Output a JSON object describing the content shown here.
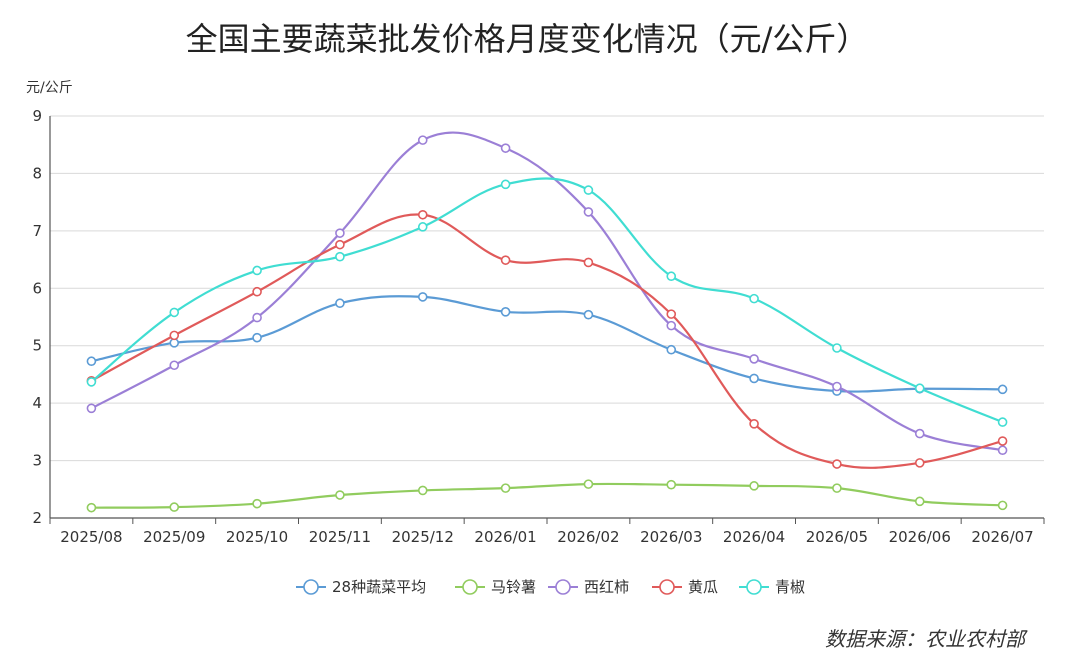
{
  "chart_data": {
    "type": "line",
    "title": "全国主要蔬菜批发价格月度变化情况（元/公斤）",
    "ylabel": "元/公斤",
    "xlabel": "",
    "ylim": [
      2,
      9
    ],
    "yticks": [
      "2",
      "3",
      "4",
      "5",
      "6",
      "7",
      "8",
      "9"
    ],
    "grid": true,
    "smooth": true,
    "legend_position": "bottom",
    "categories": [
      "2025/08",
      "2025/09",
      "2025/10",
      "2025/11",
      "2025/12",
      "2026/01",
      "2026/02",
      "2026/03",
      "2026/04",
      "2026/05",
      "2026/06",
      "2026/07"
    ],
    "series": [
      {
        "name": "28种蔬菜平均",
        "color": "#5b9bd5",
        "values": [
          4.73,
          5.05,
          5.14,
          5.74,
          5.85,
          5.59,
          5.54,
          4.93,
          4.43,
          4.21,
          4.25,
          4.24
        ]
      },
      {
        "name": "马铃薯",
        "color": "#91cc5e",
        "values": [
          2.18,
          2.19,
          2.25,
          2.4,
          2.48,
          2.52,
          2.59,
          2.58,
          2.56,
          2.52,
          2.29,
          2.22
        ]
      },
      {
        "name": "西红柿",
        "color": "#9b7fd6",
        "values": [
          3.91,
          4.66,
          5.49,
          6.96,
          8.58,
          8.44,
          7.33,
          5.35,
          4.77,
          4.29,
          3.47,
          3.18
        ]
      },
      {
        "name": "黄瓜",
        "color": "#e05a5a",
        "values": [
          4.39,
          5.18,
          5.94,
          6.76,
          7.28,
          6.49,
          6.45,
          5.55,
          3.64,
          2.94,
          2.96,
          3.34
        ]
      },
      {
        "name": "青椒",
        "color": "#40ddd2",
        "values": [
          4.37,
          5.58,
          6.31,
          6.55,
          7.07,
          7.81,
          7.71,
          6.21,
          5.82,
          4.96,
          4.26,
          3.67
        ]
      }
    ]
  },
  "source": "数据来源：农业农村部"
}
